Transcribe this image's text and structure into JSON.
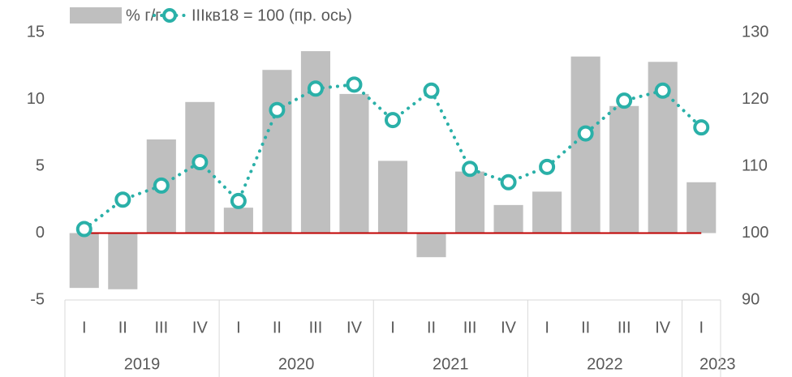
{
  "chart_data": {
    "type": "bar",
    "categories": [
      "I",
      "II",
      "III",
      "IV",
      "I",
      "II",
      "III",
      "IV",
      "I",
      "II",
      "III",
      "IV",
      "I",
      "II",
      "III",
      "IV",
      "I"
    ],
    "years": [
      "2019",
      "2020",
      "2021",
      "2022",
      "2023"
    ],
    "series": [
      {
        "name": "% г/г",
        "type": "bar",
        "color": "#bfbfbf",
        "values": [
          -4.1,
          -4.2,
          7.0,
          9.8,
          1.9,
          12.2,
          13.6,
          10.4,
          5.4,
          -1.8,
          4.6,
          2.1,
          3.1,
          13.2,
          9.5,
          12.8,
          3.8
        ]
      },
      {
        "name": "IIIкв18 = 100 (пр. ось)",
        "type": "line",
        "axis": "y2",
        "color": "#2ab0a8",
        "values": [
          100.6,
          105.0,
          107.1,
          110.6,
          104.8,
          118.4,
          121.6,
          122.2,
          116.9,
          121.3,
          109.6,
          107.6,
          109.9,
          114.9,
          119.8,
          121.3,
          115.8
        ]
      }
    ],
    "ylim": [
      -5,
      15
    ],
    "yticks": [
      -5,
      0,
      5,
      10,
      15
    ],
    "y2lim": [
      90,
      130
    ],
    "y2ticks": [
      90,
      100,
      110,
      120,
      130
    ],
    "zero_line_color": "#c00000"
  }
}
